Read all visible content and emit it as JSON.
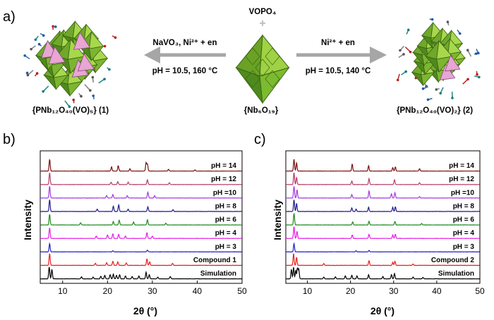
{
  "panel_a": {
    "label": "a)",
    "left_arrow": {
      "line1": "NaVO₃, Ni²⁺ + en",
      "line2": "pH = 10.5, 160 °C"
    },
    "right_arrow": {
      "line1": "Ni²⁺ + en",
      "line2": "pH = 10.5, 140 °C"
    },
    "center_top": "VOPO₄",
    "center_plus": "+",
    "left_caption": "{PNb₁₂O₄₀(VO)₅} (1)",
    "center_caption": "{Nb₆O₁₉}",
    "right_caption": "{PNb₁₂O₄₀(VO)₂} (2)",
    "colors": {
      "polyhedra_green": "#8fc93a",
      "polyhedra_pink": "#e7a6d3",
      "arrow_gray": "#a6a6a6"
    }
  },
  "shared_axes": {
    "ylabel": "Intensity",
    "xlabel": "2θ (°)"
  },
  "chart_data": [
    {
      "type": "line",
      "panel_label": "b)",
      "xlim": [
        5,
        50
      ],
      "xticks": [
        10,
        20,
        30,
        40,
        50
      ],
      "series": [
        {
          "name": "Simulation",
          "color": "#000000",
          "peaks": [
            [
              7.0,
              1.0
            ],
            [
              7.6,
              0.8
            ],
            [
              14.2,
              0.18
            ],
            [
              16.8,
              0.15
            ],
            [
              18.5,
              0.22
            ],
            [
              19.4,
              0.3
            ],
            [
              20.6,
              0.35
            ],
            [
              21.3,
              0.4
            ],
            [
              22.0,
              0.3
            ],
            [
              22.7,
              0.35
            ],
            [
              24.0,
              0.25
            ],
            [
              25.5,
              0.2
            ],
            [
              27.0,
              0.25
            ],
            [
              28.6,
              0.55
            ],
            [
              29.3,
              0.35
            ],
            [
              31.2,
              0.15
            ],
            [
              34.0,
              0.2
            ]
          ]
        },
        {
          "name": "Compound 1",
          "color": "#e8201e",
          "peaks": [
            [
              7.1,
              1.0
            ],
            [
              17.3,
              0.18
            ],
            [
              19.8,
              0.22
            ],
            [
              21.2,
              0.35
            ],
            [
              22.3,
              0.3
            ],
            [
              24.2,
              0.2
            ],
            [
              28.8,
              0.55
            ],
            [
              29.4,
              0.3
            ],
            [
              34.5,
              0.18
            ]
          ]
        },
        {
          "name": "pH = 3",
          "color": "#1d23c8",
          "peaks": [
            [
              7.1,
              0.7
            ],
            [
              21.2,
              0.1
            ],
            [
              28.9,
              0.15
            ]
          ]
        },
        {
          "name": "pH = 4",
          "color": "#e61ee6",
          "peaks": [
            [
              7.1,
              0.9
            ],
            [
              17.5,
              0.2
            ],
            [
              20.0,
              0.3
            ],
            [
              21.2,
              0.4
            ],
            [
              22.5,
              0.35
            ],
            [
              24.0,
              0.2
            ],
            [
              28.8,
              0.5
            ],
            [
              30.0,
              0.2
            ]
          ]
        },
        {
          "name": "pH = 6",
          "color": "#1e8a1e",
          "peaks": [
            [
              7.1,
              0.9
            ],
            [
              14.0,
              0.18
            ],
            [
              21.3,
              0.3
            ],
            [
              22.6,
              0.4
            ],
            [
              25.8,
              0.25
            ],
            [
              28.9,
              0.45
            ],
            [
              33.0,
              0.15
            ]
          ]
        },
        {
          "name": "pH = 8",
          "color": "#23198c",
          "peaks": [
            [
              7.1,
              1.0
            ],
            [
              17.7,
              0.2
            ],
            [
              21.3,
              0.45
            ],
            [
              22.5,
              0.55
            ],
            [
              24.6,
              0.2
            ],
            [
              29.0,
              0.4
            ],
            [
              34.6,
              0.15
            ]
          ]
        },
        {
          "name": "pH =10",
          "color": "#a33be0",
          "peaks": [
            [
              7.1,
              1.0
            ],
            [
              19.8,
              0.2
            ],
            [
              21.2,
              0.3
            ],
            [
              24.4,
              0.2
            ],
            [
              29.0,
              0.5
            ],
            [
              30.5,
              0.2
            ]
          ]
        },
        {
          "name": "pH = 12",
          "color": "#b83a6a",
          "peaks": [
            [
              7.1,
              1.0
            ],
            [
              20.8,
              0.2
            ],
            [
              22.3,
              0.25
            ],
            [
              24.6,
              0.2
            ],
            [
              28.9,
              0.4
            ],
            [
              33.8,
              0.15
            ]
          ]
        },
        {
          "name": "pH = 14",
          "color": "#7a1010",
          "peaks": [
            [
              7.1,
              1.0
            ],
            [
              20.9,
              0.35
            ],
            [
              22.4,
              0.45
            ],
            [
              25.0,
              0.2
            ],
            [
              28.6,
              0.7
            ],
            [
              28.9,
              0.6
            ],
            [
              33.6,
              0.15
            ],
            [
              39.5,
              0.1
            ]
          ]
        }
      ]
    },
    {
      "type": "line",
      "panel_label": "c)",
      "xlim": [
        5,
        50
      ],
      "xticks": [
        10,
        20,
        30,
        40,
        50
      ],
      "series": [
        {
          "name": "Simulation",
          "color": "#000000",
          "peaks": [
            [
              6.3,
              0.8
            ],
            [
              6.8,
              1.0
            ],
            [
              7.3,
              0.7
            ],
            [
              7.7,
              0.9
            ],
            [
              8.0,
              0.8
            ],
            [
              13.8,
              0.15
            ],
            [
              16.5,
              0.18
            ],
            [
              18.8,
              0.25
            ],
            [
              20.3,
              0.3
            ],
            [
              21.5,
              0.25
            ],
            [
              24.2,
              0.35
            ],
            [
              27.5,
              0.2
            ],
            [
              29.5,
              0.35
            ],
            [
              30.2,
              0.45
            ],
            [
              34.5,
              0.15
            ],
            [
              36.8,
              0.12
            ]
          ]
        },
        {
          "name": "Compound 2",
          "color": "#e8201e",
          "peaks": [
            [
              6.8,
              1.0
            ],
            [
              7.5,
              0.7
            ],
            [
              13.8,
              0.15
            ],
            [
              24.3,
              0.4
            ],
            [
              29.8,
              0.25
            ],
            [
              30.3,
              0.35
            ],
            [
              34.5,
              0.12
            ]
          ]
        },
        {
          "name": "pH = 3",
          "color": "#1d23c8",
          "peaks": [
            [
              6.9,
              0.7
            ],
            [
              21.3,
              0.1
            ],
            [
              24.3,
              0.12
            ]
          ]
        },
        {
          "name": "pH = 4",
          "color": "#e61ee6",
          "peaks": [
            [
              6.9,
              1.0
            ],
            [
              7.6,
              0.6
            ],
            [
              20.4,
              0.3
            ],
            [
              24.3,
              0.35
            ],
            [
              29.8,
              0.3
            ],
            [
              30.4,
              0.35
            ]
          ]
        },
        {
          "name": "pH = 6",
          "color": "#1e8a1e",
          "peaks": [
            [
              6.9,
              1.0
            ],
            [
              20.5,
              0.25
            ],
            [
              24.3,
              0.3
            ],
            [
              30.3,
              0.3
            ],
            [
              36.5,
              0.12
            ]
          ]
        },
        {
          "name": "pH = 8",
          "color": "#23198c",
          "peaks": [
            [
              6.9,
              1.0
            ],
            [
              7.5,
              0.7
            ],
            [
              20.3,
              0.3
            ],
            [
              21.3,
              0.2
            ],
            [
              24.2,
              0.35
            ],
            [
              29.8,
              0.35
            ],
            [
              30.4,
              0.4
            ]
          ]
        },
        {
          "name": "pH =10",
          "color": "#a33be0",
          "peaks": [
            [
              6.9,
              1.0
            ],
            [
              7.6,
              0.7
            ],
            [
              20.3,
              0.3
            ],
            [
              24.3,
              0.6
            ],
            [
              29.5,
              0.35
            ],
            [
              30.3,
              0.45
            ],
            [
              36.0,
              0.12
            ]
          ]
        },
        {
          "name": "pH = 12",
          "color": "#b83a6a",
          "peaks": [
            [
              6.9,
              1.0
            ],
            [
              7.5,
              0.6
            ],
            [
              20.3,
              0.3
            ],
            [
              24.3,
              0.5
            ],
            [
              30.2,
              0.4
            ],
            [
              36.0,
              0.15
            ]
          ]
        },
        {
          "name": "pH = 14",
          "color": "#7a1010",
          "peaks": [
            [
              6.9,
              1.0
            ],
            [
              7.5,
              0.7
            ],
            [
              20.4,
              0.6
            ],
            [
              24.2,
              0.45
            ],
            [
              29.8,
              0.3
            ],
            [
              30.4,
              0.35
            ],
            [
              36.0,
              0.2
            ]
          ]
        }
      ]
    }
  ]
}
